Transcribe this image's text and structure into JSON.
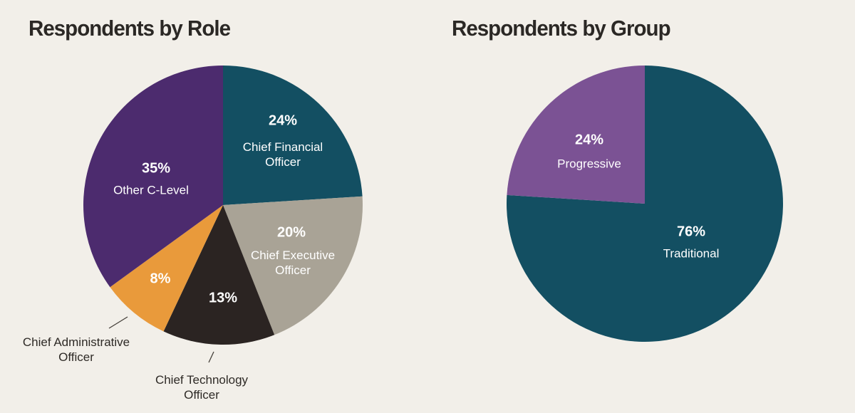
{
  "colors": {
    "background": "#f2efe9",
    "title_text": "#2b2825",
    "label_light": "#ffffff",
    "label_dark": "#2e2a26",
    "leader_line": "#45403a"
  },
  "chart_data": [
    {
      "type": "pie",
      "title": "Respondents by Role",
      "unit": "percent",
      "start_angle_deg": 0,
      "direction": "clockwise",
      "slices": [
        {
          "label": "Chief Financial Officer",
          "value": 24,
          "pct": "24%",
          "color": "#134f62",
          "label_placement": "inside"
        },
        {
          "label": "Chief Executive Officer",
          "value": 20,
          "pct": "20%",
          "color": "#a9a396",
          "label_placement": "inside"
        },
        {
          "label": "Chief Technology Officer",
          "value": 13,
          "pct": "13%",
          "color": "#2b2422",
          "label_placement": "outside"
        },
        {
          "label": "Chief Administrative Officer",
          "value": 8,
          "pct": "8%",
          "color": "#e99a3b",
          "label_placement": "outside"
        },
        {
          "label": "Other C-Level",
          "value": 35,
          "pct": "35%",
          "color": "#4c2b6e",
          "label_placement": "inside"
        }
      ]
    },
    {
      "type": "pie",
      "title": "Respondents by Group",
      "unit": "percent",
      "start_angle_deg": 0,
      "direction": "clockwise",
      "slices": [
        {
          "label": "Traditional",
          "value": 76,
          "pct": "76%",
          "color": "#134f62",
          "label_placement": "inside"
        },
        {
          "label": "Progressive",
          "value": 24,
          "pct": "24%",
          "color": "#7b5294",
          "label_placement": "inside"
        }
      ]
    }
  ]
}
